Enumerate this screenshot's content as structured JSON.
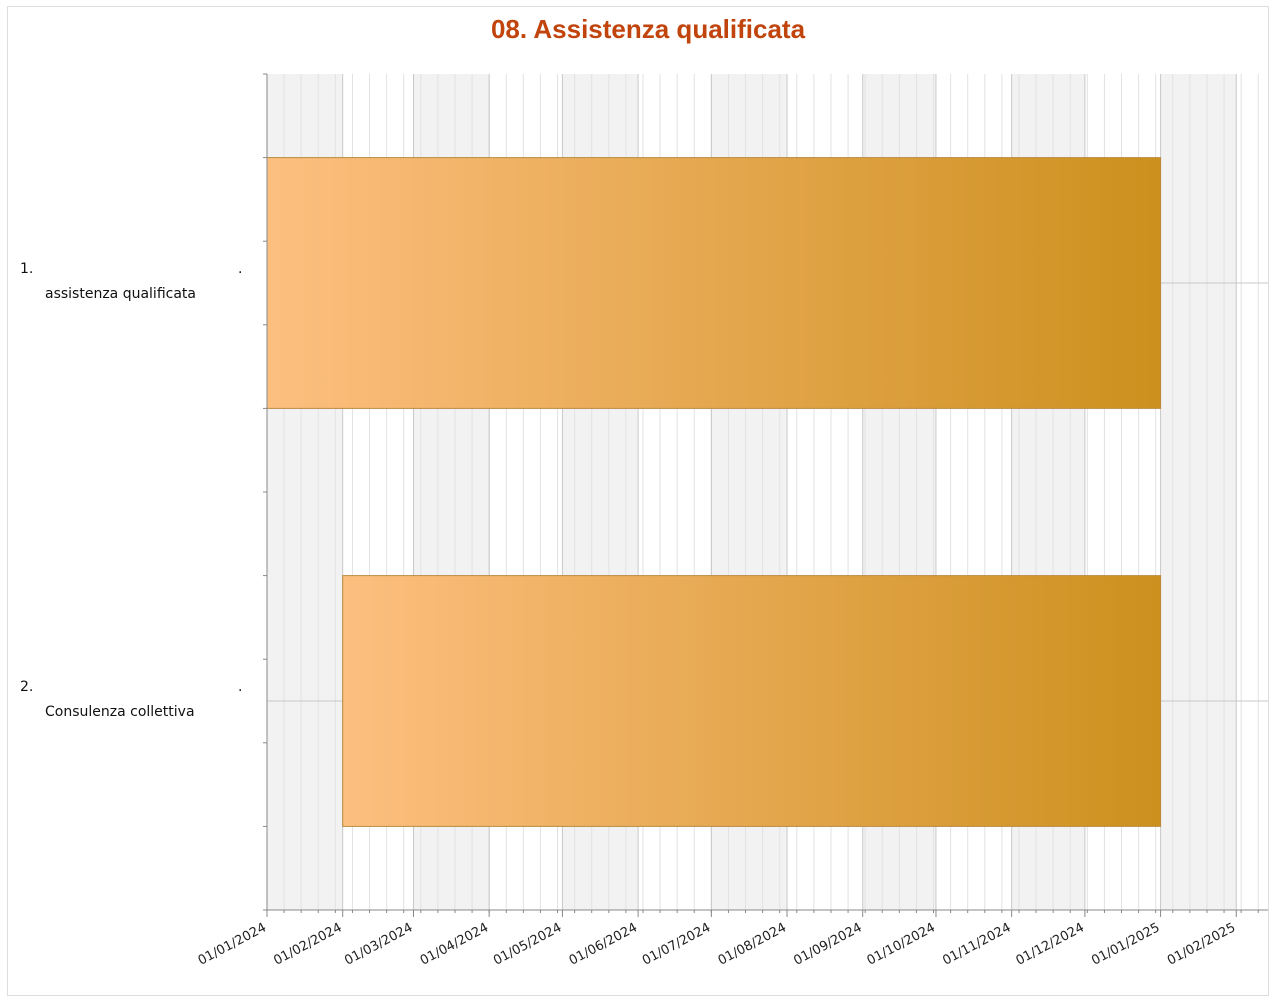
{
  "chart_data": {
    "type": "bar",
    "orientation": "horizontal",
    "subtype": "gantt",
    "title": "08. Assistenza qualificata",
    "categories": [
      {
        "number": "1.",
        "label": "assistenza qualificata",
        "suffix": "."
      },
      {
        "number": "2.",
        "label": "Consulenza collettiva",
        "suffix": "."
      }
    ],
    "tasks": [
      {
        "start": "2024-01-01",
        "end": "2025-01-01"
      },
      {
        "start": "2024-02-01",
        "end": "2025-01-01"
      }
    ],
    "x_ticks": [
      "01/01/2024",
      "01/02/2024",
      "01/03/2024",
      "01/04/2024",
      "01/05/2024",
      "01/06/2024",
      "01/07/2024",
      "01/08/2024",
      "01/09/2024",
      "01/10/2024",
      "01/11/2024",
      "01/12/2024",
      "01/01/2025",
      "01/02/2025"
    ],
    "xlim": [
      "2024-01-01",
      "2025-02-14"
    ],
    "grid": true,
    "legend": "none",
    "colors": {
      "title": "#c0440c",
      "bar_start": "#fdbf7f",
      "bar_end": "#cc901e",
      "bar_border": "#b88a3c",
      "band": "#f2f2f2",
      "grid_major": "#c8c8c8",
      "grid_minor": "#e2e2e2",
      "axis": "#888888"
    }
  }
}
